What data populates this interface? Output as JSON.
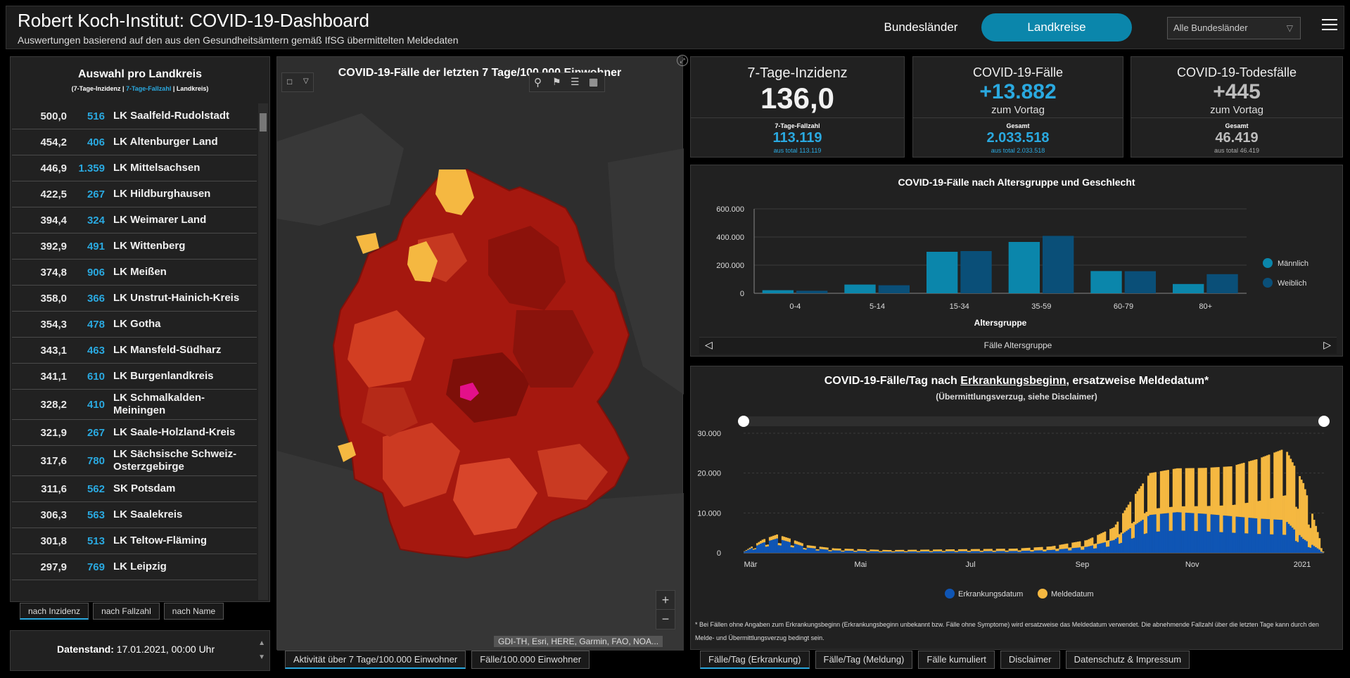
{
  "header": {
    "title": "Robert Koch-Institut: COVID-19-Dashboard",
    "subtitle": "Auswertungen basierend auf den aus den Gesundheitsämtern gemäß IfSG übermittelten Meldedaten",
    "btn_bundeslaender": "Bundesländer",
    "btn_landkreise": "Landkreise",
    "select_value": "Alle Bundesländer",
    "accent_color": "#0b86ab"
  },
  "left": {
    "title": "Auswahl pro Landkreis",
    "legend_a": "(7-Tage-Inzidenz | ",
    "legend_b": "7-Tage-Fallzahl",
    "legend_c": " | Landkreis)",
    "rows": [
      {
        "inz": "500,0",
        "fz": "516",
        "name": "LK Saalfeld-Rudolstadt"
      },
      {
        "inz": "454,2",
        "fz": "406",
        "name": "LK Altenburger Land"
      },
      {
        "inz": "446,9",
        "fz": "1.359",
        "name": "LK Mittelsachsen"
      },
      {
        "inz": "422,5",
        "fz": "267",
        "name": "LK Hildburghausen"
      },
      {
        "inz": "394,4",
        "fz": "324",
        "name": "LK Weimarer Land"
      },
      {
        "inz": "392,9",
        "fz": "491",
        "name": "LK Wittenberg"
      },
      {
        "inz": "374,8",
        "fz": "906",
        "name": "LK Meißen"
      },
      {
        "inz": "358,0",
        "fz": "366",
        "name": "LK Unstrut-Hainich-Kreis"
      },
      {
        "inz": "354,3",
        "fz": "478",
        "name": "LK Gotha"
      },
      {
        "inz": "343,1",
        "fz": "463",
        "name": "LK Mansfeld-Südharz"
      },
      {
        "inz": "341,1",
        "fz": "610",
        "name": "LK Burgenlandkreis"
      },
      {
        "inz": "328,2",
        "fz": "410",
        "name": "LK Schmalkalden-Meiningen"
      },
      {
        "inz": "321,9",
        "fz": "267",
        "name": "LK Saale-Holzland-Kreis"
      },
      {
        "inz": "317,6",
        "fz": "780",
        "name": "LK Sächsische Schweiz-Osterzgebirge"
      },
      {
        "inz": "311,6",
        "fz": "562",
        "name": "SK Potsdam"
      },
      {
        "inz": "306,3",
        "fz": "563",
        "name": "LK Saalekreis"
      },
      {
        "inz": "301,8",
        "fz": "513",
        "name": "LK Teltow-Fläming"
      },
      {
        "inz": "297,9",
        "fz": "769",
        "name": "LK Leipzig"
      }
    ],
    "sort_inzidenz": "nach Inzidenz",
    "sort_fallzahl": "nach Fallzahl",
    "sort_name": "nach Name",
    "datenstand_label": "Datenstand:",
    "datenstand_value": " 17.01.2021, 00:00 Uhr"
  },
  "map": {
    "title": "COVID-19-Fälle der letzten 7 Tage/100.000 Einwohner",
    "attribution": "GDI-TH, Esri, HERE, Garmin, FAO, NOA...",
    "zoom_in": "+",
    "zoom_out": "−",
    "tab1": "Aktivität über 7 Tage/100.000 Einwohner",
    "tab2": "Fälle/100.000 Einwohner"
  },
  "kpi": {
    "inz_label": "7-Tage-Inzidenz",
    "inz_value": "136,0",
    "inz_sub_label": "7-Tage-Fallzahl",
    "inz_sub_value": "113.119",
    "inz_sub_note": "aus total 113.119",
    "cases_label": "COVID-19-Fälle",
    "cases_value": "+13.882",
    "cases_vortag": "zum Vortag",
    "cases_sub_label": "Gesamt",
    "cases_sub_value": "2.033.518",
    "cases_sub_note": "aus total 2.033.518",
    "deaths_label": "COVID-19-Todesfälle",
    "deaths_value": "+445",
    "deaths_vortag": "zum Vortag",
    "deaths_sub_label": "Gesamt",
    "deaths_sub_value": "46.419",
    "deaths_sub_note": "aus total 46.419"
  },
  "age_chart_nav": "Fälle Altersgruppe",
  "daily": {
    "title_a": "COVID-19-Fälle/Tag nach ",
    "title_b": "Erkrankungsbeginn",
    "title_c": ", ersatzweise Meldedatum*",
    "subtitle": "(Übermittlungsverzug, siehe Disclaimer)",
    "footnote": "* Bei Fällen ohne Angaben zum Erkrankungsbeginn (Erkrankungsbeginn unbekannt bzw. Fälle ohne Symptome) wird ersatzweise das Meldedatum verwendet. Die abnehmende Fallzahl über die letzten Tage kann durch den Melde- und Übermittlungsverzug bedingt sein.",
    "tabs": [
      "Fälle/Tag (Erkrankung)",
      "Fälle/Tag (Meldung)",
      "Fälle kumuliert",
      "Disclaimer",
      "Datenschutz & Impressum"
    ]
  },
  "chart_data": [
    {
      "type": "bar",
      "title": "COVID-19-Fälle nach Altersgruppe und Geschlecht",
      "xlabel": "Altersgruppe",
      "ylabel": "",
      "categories": [
        "0-4",
        "5-14",
        "15-34",
        "35-59",
        "60-79",
        "80+"
      ],
      "ylim": [
        0,
        600000
      ],
      "yticks": [
        "0",
        "200.000",
        "400.000",
        "600.000"
      ],
      "series": [
        {
          "name": "Männlich",
          "color": "#0b86ab",
          "values": [
            22000,
            62000,
            295000,
            365000,
            158000,
            66000
          ]
        },
        {
          "name": "Weiblich",
          "color": "#0a4f78",
          "values": [
            18000,
            57000,
            300000,
            408000,
            157000,
            136000
          ]
        }
      ],
      "legend": "right",
      "grid": true
    },
    {
      "type": "bar",
      "title": "COVID-19-Fälle/Tag nach Erkrankungsbeginn, ersatzweise Meldedatum*",
      "stacked": true,
      "xticks": [
        "Mär",
        "Mai",
        "Jul",
        "Sep",
        "Nov",
        "2021"
      ],
      "ylim": [
        0,
        30000
      ],
      "yticks": [
        "0",
        "10.000",
        "20.000",
        "30.000"
      ],
      "x_range": [
        "2020-03-01",
        "2021-01-16"
      ],
      "series": [
        {
          "name": "Erkrankungsdatum",
          "color": "#0f55b4",
          "anchors": [
            [
              0,
              300
            ],
            [
              10,
              2500
            ],
            [
              18,
              3600
            ],
            [
              25,
              2700
            ],
            [
              35,
              1300
            ],
            [
              50,
              600
            ],
            [
              80,
              300
            ],
            [
              120,
              400
            ],
            [
              150,
              450
            ],
            [
              170,
              700
            ],
            [
              190,
              1500
            ],
            [
              205,
              3200
            ],
            [
              215,
              6500
            ],
            [
              225,
              9500
            ],
            [
              240,
              10200
            ],
            [
              255,
              9800
            ],
            [
              270,
              9200
            ],
            [
              285,
              8600
            ],
            [
              300,
              8200
            ],
            [
              310,
              3500
            ],
            [
              321,
              200
            ]
          ]
        },
        {
          "name": "Meldedatum",
          "color": "#f5b841",
          "anchors": [
            [
              0,
              100
            ],
            [
              10,
              800
            ],
            [
              18,
              1000
            ],
            [
              25,
              900
            ],
            [
              35,
              600
            ],
            [
              50,
              500
            ],
            [
              80,
              400
            ],
            [
              120,
              500
            ],
            [
              150,
              600
            ],
            [
              170,
              900
            ],
            [
              190,
              1700
            ],
            [
              205,
              3200
            ],
            [
              215,
              7000
            ],
            [
              225,
              10500
            ],
            [
              240,
              11000
            ],
            [
              255,
              11500
            ],
            [
              270,
              12500
            ],
            [
              285,
              15000
            ],
            [
              300,
              18000
            ],
            [
              310,
              14000
            ],
            [
              321,
              400
            ]
          ]
        }
      ],
      "legend": "bottom",
      "grid": true
    }
  ]
}
